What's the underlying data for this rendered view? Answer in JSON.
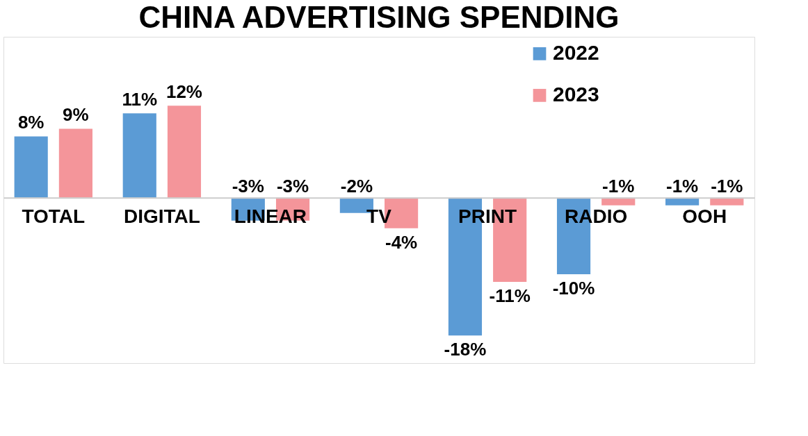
{
  "chart_data": {
    "type": "bar",
    "title": "CHINA ADVERTISING SPENDING",
    "categories": [
      "TOTAL",
      "DIGITAL",
      "LINEAR",
      "TV",
      "PRINT",
      "RADIO",
      "OOH"
    ],
    "series": [
      {
        "name": "2022",
        "color": "#5b9bd5",
        "values": [
          8,
          11,
          -3,
          -2,
          -18,
          -10,
          -1
        ],
        "value_labels": [
          "8%",
          "11%",
          "-3%",
          "-2%",
          "-18%",
          "-10%",
          "-1%"
        ]
      },
      {
        "name": "2023",
        "color": "#f4959a",
        "values": [
          9,
          12,
          -3,
          -4,
          -11,
          -1,
          -1
        ],
        "value_labels": [
          "9%",
          "12%",
          "-3%",
          "-4%",
          "-11%",
          "-1%",
          "-1%"
        ]
      }
    ],
    "legend": "top right",
    "grid": false
  }
}
